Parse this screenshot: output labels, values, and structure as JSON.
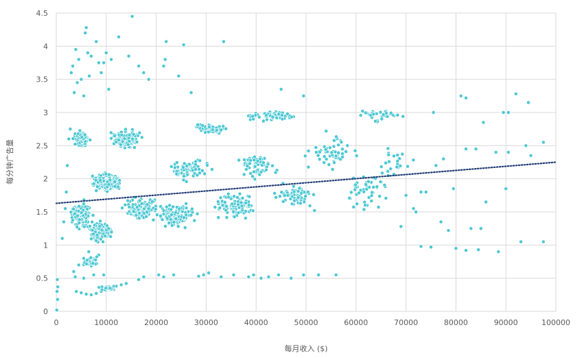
{
  "chart_data": {
    "type": "scatter",
    "title": "",
    "xlabel": "每月收入 ($)",
    "ylabel": "每分钟广告量",
    "xlim": [
      0,
      100000
    ],
    "ylim": [
      0,
      4.5
    ],
    "x_ticks": [
      "0",
      "10000",
      "20000",
      "30000",
      "40000",
      "50000",
      "60000",
      "70000",
      "80000",
      "90000",
      "100000"
    ],
    "y_ticks": [
      "0",
      "0.5",
      "1",
      "1.5",
      "2",
      "2.5",
      "3",
      "3.5",
      "4",
      "4.5"
    ],
    "grid": true,
    "legend": "none",
    "colors": {
      "points": "#4dc8d3",
      "point_edge": "#ffffff",
      "trend": "#1f3b73",
      "grid": "#d9d9d9",
      "text": "#595959"
    },
    "trendline": {
      "type": "linear",
      "style": "dotted",
      "x": [
        0,
        100000
      ],
      "y": [
        1.63,
        2.25
      ]
    },
    "series": [
      {
        "marker": "circle",
        "points": [
          [
            100,
            0.02
          ],
          [
            150,
            0.3
          ],
          [
            200,
            0.48
          ],
          [
            300,
            0.37
          ],
          [
            250,
            0.18
          ],
          [
            1200,
            1.1
          ],
          [
            1500,
            1.35
          ],
          [
            1800,
            1.55
          ],
          [
            2000,
            1.8
          ],
          [
            2200,
            2.2
          ],
          [
            2500,
            2.6
          ],
          [
            2800,
            2.75
          ],
          [
            3000,
            3.6
          ],
          [
            3300,
            3.7
          ],
          [
            3600,
            3.3
          ],
          [
            3900,
            3.95
          ],
          [
            4200,
            3.45
          ],
          [
            4500,
            3.8
          ],
          [
            5000,
            3.5
          ],
          [
            5500,
            3.25
          ],
          [
            5800,
            4.2
          ],
          [
            6000,
            4.28
          ],
          [
            6300,
            3.9
          ],
          [
            6600,
            3.55
          ],
          [
            7000,
            3.85
          ],
          [
            8000,
            4.07
          ],
          [
            8500,
            3.75
          ],
          [
            9000,
            3.6
          ],
          [
            9500,
            3.75
          ],
          [
            10000,
            3.9
          ],
          [
            10500,
            3.35
          ],
          [
            11000,
            3.8
          ],
          [
            12500,
            4.14
          ],
          [
            14500,
            3.85
          ],
          [
            15200,
            4.45
          ],
          [
            16500,
            3.7
          ],
          [
            17500,
            3.6
          ],
          [
            18500,
            3.5
          ],
          [
            21500,
            3.7
          ],
          [
            21800,
            3.8
          ],
          [
            22000,
            4.07
          ],
          [
            24500,
            3.55
          ],
          [
            25500,
            4.02
          ],
          [
            27000,
            3.3
          ],
          [
            33500,
            4.07
          ],
          [
            45000,
            3.35
          ],
          [
            49500,
            3.25
          ],
          [
            4000,
            0.3
          ],
          [
            5000,
            0.28
          ],
          [
            6000,
            0.26
          ],
          [
            7000,
            0.25
          ],
          [
            8000,
            0.27
          ],
          [
            9000,
            0.3
          ],
          [
            10000,
            0.32
          ],
          [
            11000,
            0.35
          ],
          [
            12000,
            0.38
          ],
          [
            13000,
            0.4
          ],
          [
            14000,
            0.42
          ],
          [
            5500,
            0.5
          ],
          [
            7500,
            0.55
          ],
          [
            9500,
            0.55
          ],
          [
            3500,
            0.6
          ],
          [
            4500,
            0.7
          ],
          [
            5500,
            0.8
          ],
          [
            6500,
            0.9
          ],
          [
            7500,
            0.75
          ],
          [
            8500,
            0.85
          ],
          [
            3800,
            0.52
          ],
          [
            16500,
            0.48
          ],
          [
            17500,
            0.52
          ],
          [
            20500,
            0.55
          ],
          [
            21500,
            0.52
          ],
          [
            23500,
            0.55
          ],
          [
            28500,
            0.53
          ],
          [
            29500,
            0.55
          ],
          [
            30500,
            0.58
          ],
          [
            33000,
            0.52
          ],
          [
            35500,
            0.55
          ],
          [
            38500,
            0.52
          ],
          [
            39500,
            0.55
          ],
          [
            41000,
            0.5
          ],
          [
            42500,
            0.52
          ],
          [
            44500,
            0.55
          ],
          [
            47000,
            0.5
          ],
          [
            49500,
            0.55
          ],
          [
            52500,
            0.55
          ],
          [
            56000,
            0.55
          ],
          [
            80000,
            0.95
          ],
          [
            82000,
            0.92
          ],
          [
            84500,
            0.93
          ],
          [
            88500,
            0.9
          ],
          [
            93000,
            1.05
          ],
          [
            97500,
            1.05
          ],
          [
            73000,
            0.98
          ],
          [
            75000,
            0.97
          ],
          [
            77000,
            1.35
          ],
          [
            78500,
            1.22
          ],
          [
            83000,
            1.25
          ],
          [
            85000,
            1.25
          ],
          [
            79500,
            1.85
          ],
          [
            86000,
            1.65
          ],
          [
            90000,
            1.85
          ],
          [
            88000,
            2.4
          ],
          [
            90500,
            2.4
          ],
          [
            94000,
            2.5
          ],
          [
            95000,
            2.35
          ],
          [
            97500,
            2.55
          ],
          [
            89500,
            3.0
          ],
          [
            90500,
            3.0
          ],
          [
            92000,
            3.28
          ],
          [
            94500,
            3.15
          ],
          [
            85500,
            2.85
          ],
          [
            82000,
            2.45
          ],
          [
            81000,
            3.25
          ],
          [
            82000,
            3.22
          ],
          [
            84000,
            2.45
          ],
          [
            77500,
            2.3
          ],
          [
            76000,
            2.2
          ],
          [
            75500,
            3.0
          ],
          [
            74000,
            1.8
          ],
          [
            70000,
            1.75
          ],
          [
            72000,
            1.5
          ],
          [
            73000,
            1.8
          ],
          [
            69000,
            1.28
          ],
          [
            71500,
            1.55
          ]
        ]
      }
    ]
  }
}
